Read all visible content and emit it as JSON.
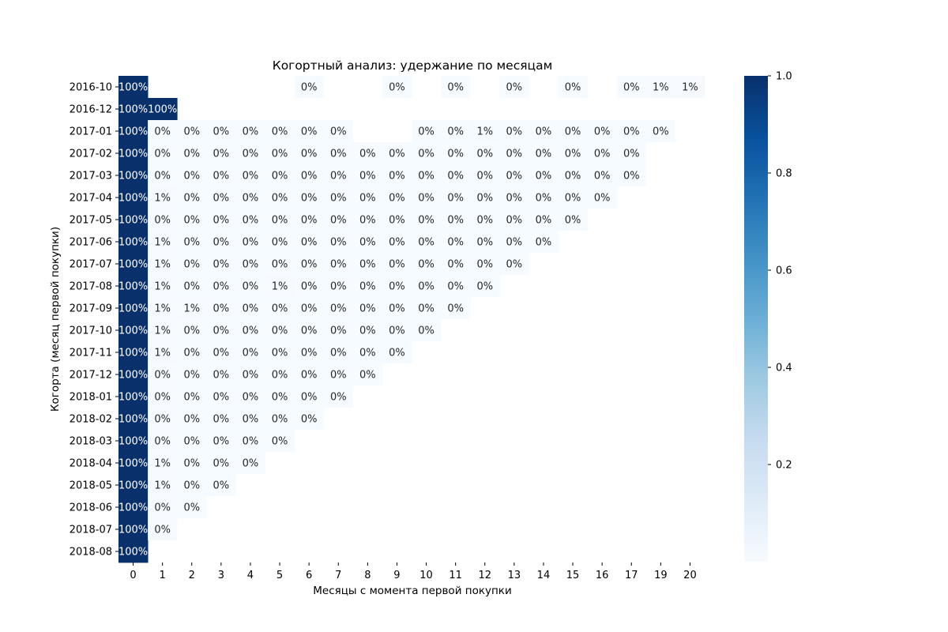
{
  "chart_data": {
    "type": "heatmap",
    "title": "Когортный анализ: удержание по месяцам",
    "xlabel": "Месяцы с момента первой покупки",
    "ylabel": "Когорта (месяц первой покупки)",
    "x": [
      "0",
      "1",
      "2",
      "3",
      "4",
      "5",
      "6",
      "7",
      "8",
      "9",
      "10",
      "11",
      "12",
      "13",
      "14",
      "15",
      "16",
      "17",
      "19",
      "20"
    ],
    "y": [
      "2016-10",
      "2016-12",
      "2017-01",
      "2017-02",
      "2017-03",
      "2017-04",
      "2017-05",
      "2017-06",
      "2017-07",
      "2017-08",
      "2017-09",
      "2017-10",
      "2017-11",
      "2017-12",
      "2018-01",
      "2018-02",
      "2018-03",
      "2018-04",
      "2018-05",
      "2018-06",
      "2018-07",
      "2018-08"
    ],
    "values": [
      [
        1,
        null,
        null,
        null,
        null,
        null,
        0.003,
        null,
        null,
        0.003,
        null,
        0.003,
        null,
        0.003,
        null,
        0.003,
        null,
        0.003,
        0.007,
        0.007
      ],
      [
        1,
        1,
        null,
        null,
        null,
        null,
        null,
        null,
        null,
        null,
        null,
        null,
        null,
        null,
        null,
        null,
        null,
        null,
        null,
        null
      ],
      [
        1,
        0.003,
        0.003,
        0.003,
        0.003,
        0.003,
        0.003,
        0.003,
        null,
        null,
        0.003,
        0.003,
        0.008,
        0.003,
        0.003,
        0.003,
        0.003,
        0.003,
        0.003,
        null
      ],
      [
        1,
        0.003,
        0.003,
        0.003,
        0.003,
        0.003,
        0.003,
        0.003,
        0.003,
        0.003,
        0.003,
        0.003,
        0.003,
        0.003,
        0.003,
        0.003,
        0.003,
        0.003,
        null,
        null
      ],
      [
        1,
        0.003,
        0.003,
        0.003,
        0.003,
        0.003,
        0.003,
        0.003,
        0.003,
        0.003,
        0.003,
        0.003,
        0.003,
        0.003,
        0.003,
        0.003,
        0.003,
        0.003,
        null,
        null
      ],
      [
        1,
        0.006,
        0.003,
        0.003,
        0.003,
        0.003,
        0.003,
        0.003,
        0.003,
        0.003,
        0.003,
        0.003,
        0.003,
        0.003,
        0.003,
        0.003,
        0.003,
        null,
        null,
        null
      ],
      [
        1,
        0.004,
        0.003,
        0.003,
        0.003,
        0.003,
        0.003,
        0.003,
        0.003,
        0.003,
        0.003,
        0.003,
        0.003,
        0.003,
        0.003,
        0.003,
        null,
        null,
        null,
        null
      ],
      [
        1,
        0.005,
        0.003,
        0.003,
        0.003,
        0.003,
        0.003,
        0.003,
        0.003,
        0.003,
        0.003,
        0.003,
        0.003,
        0.003,
        0.003,
        null,
        null,
        null,
        null,
        null
      ],
      [
        1,
        0.005,
        0.003,
        0.003,
        0.003,
        0.003,
        0.003,
        0.003,
        0.003,
        0.003,
        0.003,
        0.003,
        0.003,
        0.003,
        null,
        null,
        null,
        null,
        null,
        null
      ],
      [
        1,
        0.007,
        0.003,
        0.003,
        0.003,
        0.005,
        0.003,
        0.003,
        0.003,
        0.003,
        0.003,
        0.003,
        0.003,
        null,
        null,
        null,
        null,
        null,
        null,
        null
      ],
      [
        1,
        0.007,
        0.005,
        0.003,
        0.003,
        0.003,
        0.003,
        0.003,
        0.003,
        0.003,
        0.003,
        0.003,
        null,
        null,
        null,
        null,
        null,
        null,
        null,
        null
      ],
      [
        1,
        0.007,
        0.003,
        0.003,
        0.003,
        0.003,
        0.003,
        0.003,
        0.003,
        0.003,
        0.003,
        null,
        null,
        null,
        null,
        null,
        null,
        null,
        null,
        null
      ],
      [
        1,
        0.006,
        0.003,
        0.003,
        0.003,
        0.003,
        0.003,
        0.003,
        0.003,
        0.003,
        null,
        null,
        null,
        null,
        null,
        null,
        null,
        null,
        null,
        null
      ],
      [
        1,
        0.002,
        0.003,
        0.003,
        0.003,
        0.003,
        0.003,
        0.003,
        0.003,
        null,
        null,
        null,
        null,
        null,
        null,
        null,
        null,
        null,
        null,
        null
      ],
      [
        1,
        0.004,
        0.003,
        0.003,
        0.003,
        0.003,
        0.003,
        0.003,
        null,
        null,
        null,
        null,
        null,
        null,
        null,
        null,
        null,
        null,
        null,
        null
      ],
      [
        1,
        0.004,
        0.003,
        0.003,
        0.003,
        0.003,
        0.003,
        null,
        null,
        null,
        null,
        null,
        null,
        null,
        null,
        null,
        null,
        null,
        null,
        null
      ],
      [
        1,
        0.004,
        0.003,
        0.003,
        0.003,
        0.003,
        null,
        null,
        null,
        null,
        null,
        null,
        null,
        null,
        null,
        null,
        null,
        null,
        null,
        null
      ],
      [
        1,
        0.006,
        0.003,
        0.003,
        0.003,
        null,
        null,
        null,
        null,
        null,
        null,
        null,
        null,
        null,
        null,
        null,
        null,
        null,
        null,
        null
      ],
      [
        1,
        0.005,
        0.003,
        0.003,
        null,
        null,
        null,
        null,
        null,
        null,
        null,
        null,
        null,
        null,
        null,
        null,
        null,
        null,
        null,
        null
      ],
      [
        1,
        0.004,
        0.003,
        null,
        null,
        null,
        null,
        null,
        null,
        null,
        null,
        null,
        null,
        null,
        null,
        null,
        null,
        null,
        null,
        null
      ],
      [
        1,
        0.004,
        null,
        null,
        null,
        null,
        null,
        null,
        null,
        null,
        null,
        null,
        null,
        null,
        null,
        null,
        null,
        null,
        null,
        null
      ],
      [
        1,
        null,
        null,
        null,
        null,
        null,
        null,
        null,
        null,
        null,
        null,
        null,
        null,
        null,
        null,
        null,
        null,
        null,
        null,
        null
      ]
    ],
    "colorscale": "Blues",
    "colorbar": {
      "ticks": [
        "0.2",
        "0.4",
        "0.6",
        "0.8",
        "1.0"
      ],
      "range": [
        0,
        1
      ]
    },
    "colors": {
      "low": "#f7fbff",
      "high": "#08306b"
    },
    "annotation_format": "percent",
    "grid": false,
    "legend": "right"
  }
}
